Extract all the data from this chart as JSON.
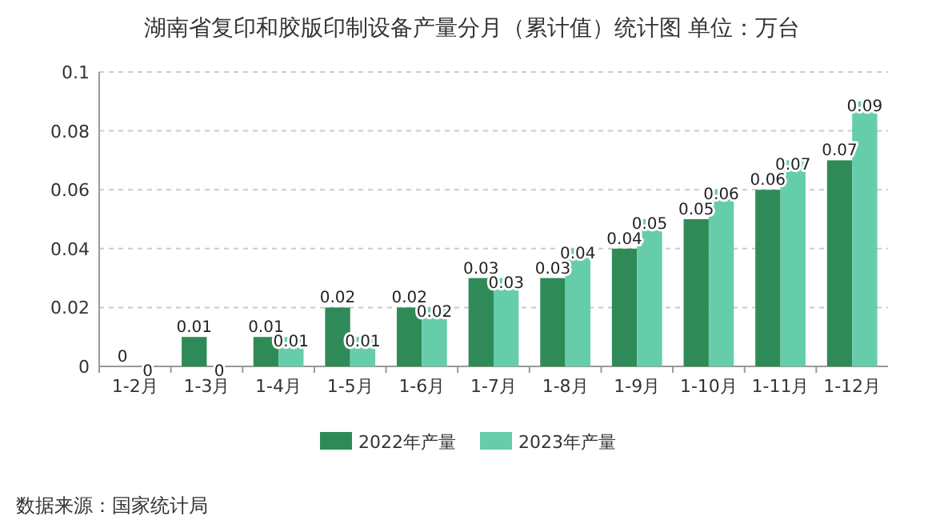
{
  "chart_data": {
    "type": "bar",
    "title": "湖南省复印和胶版印制设备产量分月（累计值）统计图  单位：万台",
    "categories": [
      "1-2月",
      "1-3月",
      "1-4月",
      "1-5月",
      "1-6月",
      "1-7月",
      "1-8月",
      "1-9月",
      "1-10月",
      "1-11月",
      "1-12月"
    ],
    "series": [
      {
        "name": "2022年产量",
        "color": "#2e8b57",
        "values": [
          0,
          0.01,
          0.01,
          0.02,
          0.02,
          0.03,
          0.03,
          0.04,
          0.05,
          0.06,
          0.07
        ]
      },
      {
        "name": "2023年产量",
        "color": "#66cdaa",
        "values": [
          0,
          0,
          0.01,
          0.01,
          0.02,
          0.03,
          0.04,
          0.05,
          0.06,
          0.07,
          0.09
        ]
      }
    ],
    "ylim": [
      0,
      0.1
    ],
    "yticks": [
      0,
      0.02,
      0.04,
      0.06,
      0.08,
      0.1
    ],
    "grid": "y",
    "legend": "bottom",
    "data_labels": true,
    "annotations": [
      "数据来源：国家统计局"
    ]
  }
}
